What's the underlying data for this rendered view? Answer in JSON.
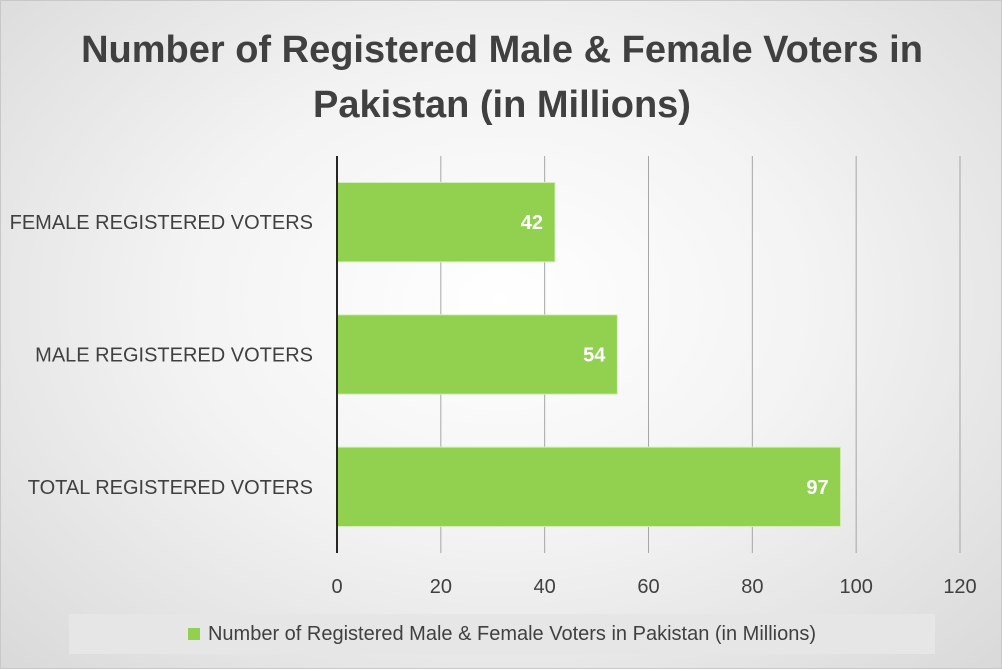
{
  "chart_data": {
    "type": "bar",
    "orientation": "horizontal",
    "title": "Number of Registered Male & Female Voters in Pakistan (in Millions)",
    "categories": [
      "TOTAL REGISTERED VOTERS",
      "MALE REGISTERED VOTERS",
      "FEMALE REGISTERED VOTERS"
    ],
    "series": [
      {
        "name": "Number of Registered Male & Female Voters in Pakistan (in Millions)",
        "values": [
          97,
          54,
          42
        ],
        "color": "#92d050"
      }
    ],
    "xlim": [
      0,
      120
    ],
    "xticks": [
      0,
      20,
      40,
      60,
      80,
      100,
      120
    ],
    "grid": true,
    "data_labels": true,
    "legend_position": "bottom"
  },
  "colors": {
    "bar": "#92d050",
    "text": "#404040",
    "grid": "#a6a6a6",
    "axis": "#262626"
  }
}
